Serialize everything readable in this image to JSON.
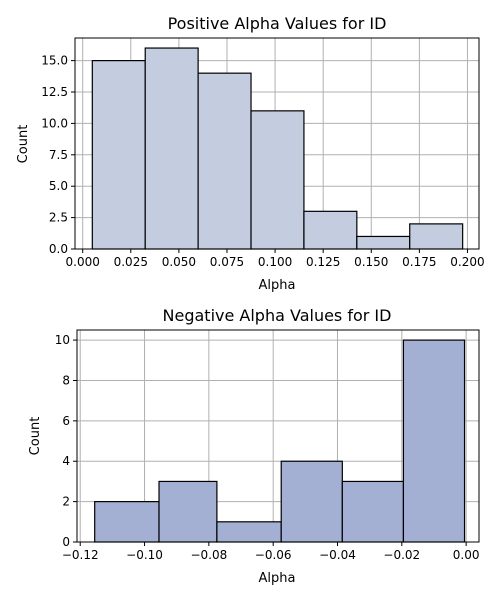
{
  "chart_data": [
    {
      "type": "bar",
      "title": "Positive Alpha Values for ID",
      "xlabel": "Alpha",
      "ylabel": "Count",
      "bin_edges": [
        0.005,
        0.0325,
        0.06,
        0.0875,
        0.115,
        0.1425,
        0.17,
        0.1975
      ],
      "values": [
        15,
        16,
        14,
        11,
        3,
        1,
        2
      ],
      "xlim": [
        -0.004,
        0.206
      ],
      "ylim": [
        0,
        16.8
      ],
      "xticks": [
        0.0,
        0.025,
        0.05,
        0.075,
        0.1,
        0.125,
        0.15,
        0.175,
        0.2
      ],
      "xtick_labels": [
        "0.000",
        "0.025",
        "0.050",
        "0.075",
        "0.100",
        "0.125",
        "0.150",
        "0.175",
        "0.200"
      ],
      "yticks": [
        0,
        2.5,
        5,
        7.5,
        10,
        12.5,
        15
      ],
      "ytick_labels": [
        "0.0",
        "2.5",
        "5.0",
        "7.5",
        "10.0",
        "12.5",
        "15.0"
      ],
      "grid": true,
      "bar_color": "#c4cde0"
    },
    {
      "type": "bar",
      "title": "Negative Alpha Values for ID",
      "xlabel": "Alpha",
      "ylabel": "Count",
      "bin_edges": [
        -0.1155,
        -0.0955,
        -0.0775,
        -0.0575,
        -0.0385,
        -0.0195,
        -0.0005
      ],
      "values": [
        2,
        3,
        1,
        4,
        3,
        10
      ],
      "xlim": [
        -0.121,
        0.004
      ],
      "ylim": [
        0,
        10.5
      ],
      "xticks": [
        -0.12,
        -0.1,
        -0.08,
        -0.06,
        -0.04,
        -0.02,
        0.0
      ],
      "xtick_labels": [
        "−0.12",
        "−0.10",
        "−0.08",
        "−0.06",
        "−0.04",
        "−0.02",
        "0.00"
      ],
      "yticks": [
        0,
        2,
        4,
        6,
        8,
        10
      ],
      "ytick_labels": [
        "0",
        "2",
        "4",
        "6",
        "8",
        "10"
      ],
      "grid": true,
      "bar_color": "#a3b0d4"
    }
  ]
}
